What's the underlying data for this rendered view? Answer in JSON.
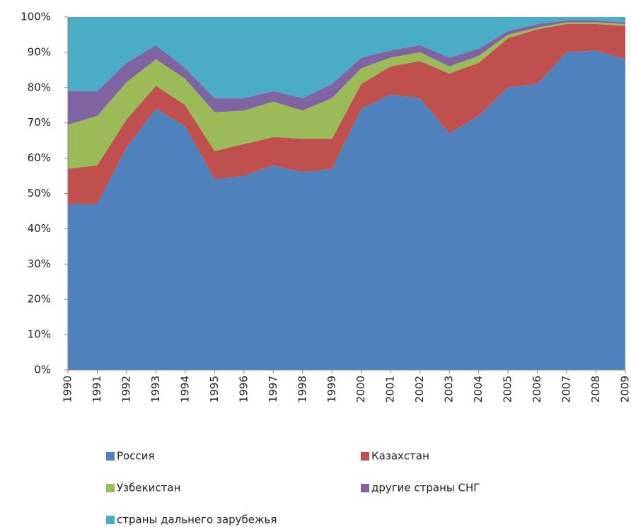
{
  "chart_data": {
    "type": "stacked-area-100",
    "categories": [
      "1990",
      "1991",
      "1992",
      "1993",
      "1994",
      "1995",
      "1996",
      "1997",
      "1998",
      "1999",
      "2000",
      "2001",
      "2002",
      "2003",
      "2004",
      "2005",
      "2006",
      "2007",
      "2008",
      "2009"
    ],
    "series": [
      {
        "name": "Россия",
        "color": "#4f81bd",
        "values": [
          47,
          47,
          63,
          74,
          69,
          54,
          55,
          58,
          56,
          57,
          74,
          78,
          77,
          67,
          72,
          80,
          81,
          90,
          90.5,
          88
        ]
      },
      {
        "name": "Казахстан",
        "color": "#c0504d",
        "values": [
          10,
          11,
          8,
          6.5,
          6,
          8,
          9,
          8,
          9.5,
          8.5,
          7,
          8,
          10.5,
          17,
          15,
          14,
          15.5,
          8,
          7.5,
          9.5
        ]
      },
      {
        "name": "Узбекистан",
        "color": "#9bbb59",
        "values": [
          12.5,
          14,
          10.5,
          7.5,
          7.5,
          11,
          9.5,
          10,
          8,
          11.5,
          4.5,
          2.5,
          2.5,
          2,
          2,
          1,
          0.5,
          0.5,
          0.5,
          0.5
        ]
      },
      {
        "name": "другие страны СНГ",
        "color": "#8064a2",
        "values": [
          9.5,
          7,
          5.5,
          4,
          3,
          4,
          3.5,
          3,
          3.5,
          4,
          3,
          2,
          2,
          2.5,
          2,
          1,
          1,
          0.5,
          0.5,
          0.5
        ]
      },
      {
        "name": "страны дальнего зарубежья",
        "color": "#4bacc6",
        "values": [
          21,
          21,
          13,
          8,
          14.5,
          23,
          23,
          21,
          23,
          19,
          11.5,
          9.5,
          8,
          11.5,
          9,
          4,
          2,
          1,
          1,
          1.5
        ]
      }
    ],
    "ylim": [
      0,
      100
    ],
    "yticks": [
      {
        "value": 0,
        "label": "0%"
      },
      {
        "value": 10,
        "label": "10%"
      },
      {
        "value": 20,
        "label": "20%"
      },
      {
        "value": 30,
        "label": "30%"
      },
      {
        "value": 40,
        "label": "40%"
      },
      {
        "value": 50,
        "label": "50%"
      },
      {
        "value": 60,
        "label": "60%"
      },
      {
        "value": 70,
        "label": "70%"
      },
      {
        "value": 80,
        "label": "80%"
      },
      {
        "value": 90,
        "label": "90%"
      },
      {
        "value": 100,
        "label": "100%"
      }
    ]
  }
}
